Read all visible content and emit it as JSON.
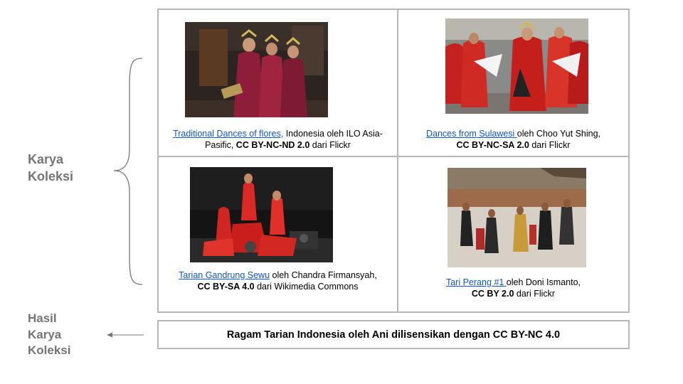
{
  "labels": {
    "karya_koleksi": [
      "Karya",
      "Koleksi"
    ],
    "hasil_karya_koleksi": [
      "Hasil",
      "Karya",
      "Koleksi"
    ]
  },
  "works": [
    {
      "link_text": "Traditional Dances of flores,",
      "caption_line1_rest": " Indonesia oleh ILO Asia-",
      "caption_line2_pre": "Pasific, ",
      "license": "CC BY-NC-ND 2.0",
      "source": " dari Flickr"
    },
    {
      "link_text": "Dances from Sulawesi ",
      "caption_line1_rest": "oleh Choo Yut Shing,",
      "caption_line2_pre": "",
      "license": "CC BY-NC-SA 2.0",
      "source": " dari Flickr"
    },
    {
      "link_text": "Tarian Gandrung Sewu",
      "caption_line1_rest": " oleh Chandra Firmansyah,",
      "caption_line2_pre": "",
      "license": "CC BY-SA 4.0",
      "source": " dari Wikimedia Commons"
    },
    {
      "link_text": "Tari Perang #1 ",
      "caption_line1_rest": "oleh Doni Ismanto,",
      "caption_line2_pre": "",
      "license": "CC BY 2.0",
      "source": " dari Flickr"
    }
  ],
  "result_text": "Ragam Tarian Indonesia oleh Ani dilisensikan dengan CC BY-NC 4.0",
  "colors": {
    "label_gray": "#757575",
    "border_gray": "#b7b7b7",
    "link_blue": "#1155cc"
  }
}
